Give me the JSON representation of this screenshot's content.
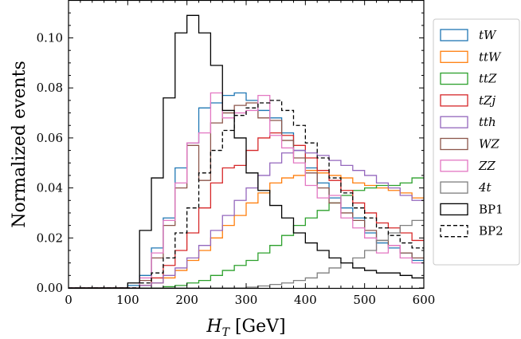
{
  "chart_data": {
    "type": "line",
    "title": "",
    "xlabel": "H_T [GeV]",
    "xlabel_parts": {
      "main": "H",
      "sub": "T",
      "unit": "[GeV]"
    },
    "ylabel": "Normalized events",
    "xlim": [
      0,
      600
    ],
    "ylim": [
      0,
      0.115
    ],
    "x_ticks": [
      "0",
      "100",
      "200",
      "300",
      "400",
      "500",
      "600"
    ],
    "y_ticks": [
      "0.00",
      "0.02",
      "0.04",
      "0.06",
      "0.08",
      "0.10"
    ],
    "grid": false,
    "legend_position": "outside-right",
    "bin_edges": [
      0,
      20,
      40,
      60,
      80,
      100,
      120,
      140,
      160,
      180,
      200,
      220,
      240,
      260,
      280,
      300,
      320,
      340,
      360,
      380,
      400,
      420,
      440,
      460,
      480,
      500,
      520,
      540,
      560,
      580,
      600
    ],
    "series": [
      {
        "name": "tW",
        "italic": true,
        "color": "#1f77b4",
        "dash": false,
        "values": [
          0,
          0,
          0,
          0,
          0,
          0.001,
          0.005,
          0.016,
          0.028,
          0.048,
          0.058,
          0.072,
          0.074,
          0.077,
          0.078,
          0.075,
          0.071,
          0.068,
          0.062,
          0.055,
          0.048,
          0.042,
          0.036,
          0.032,
          0.028,
          0.022,
          0.018,
          0.016,
          0.014,
          0.011
        ]
      },
      {
        "name": "ttW",
        "italic": true,
        "color": "#ff7f0e",
        "dash": false,
        "values": [
          0,
          0,
          0,
          0,
          0,
          0,
          0.001,
          0.002,
          0.004,
          0.007,
          0.011,
          0.015,
          0.02,
          0.025,
          0.029,
          0.034,
          0.038,
          0.042,
          0.044,
          0.045,
          0.047,
          0.046,
          0.045,
          0.044,
          0.042,
          0.041,
          0.04,
          0.039,
          0.038,
          0.036
        ]
      },
      {
        "name": "ttZ",
        "italic": true,
        "color": "#2ca02c",
        "dash": false,
        "values": [
          0,
          0,
          0,
          0,
          0,
          0,
          0,
          0,
          0.0005,
          0.001,
          0.002,
          0.003,
          0.005,
          0.007,
          0.009,
          0.011,
          0.014,
          0.017,
          0.021,
          0.025,
          0.028,
          0.031,
          0.034,
          0.037,
          0.039,
          0.04,
          0.041,
          0.041,
          0.042,
          0.044
        ]
      },
      {
        "name": "tZj",
        "italic": true,
        "color": "#d62728",
        "dash": false,
        "values": [
          0,
          0,
          0,
          0,
          0,
          0,
          0.001,
          0.004,
          0.009,
          0.015,
          0.022,
          0.032,
          0.042,
          0.048,
          0.049,
          0.055,
          0.06,
          0.062,
          0.061,
          0.057,
          0.052,
          0.047,
          0.043,
          0.039,
          0.034,
          0.03,
          0.026,
          0.024,
          0.022,
          0.019
        ]
      },
      {
        "name": "tth",
        "italic": true,
        "color": "#9467bd",
        "dash": false,
        "values": [
          0,
          0,
          0,
          0,
          0,
          0,
          0.001,
          0.002,
          0.005,
          0.008,
          0.012,
          0.017,
          0.023,
          0.029,
          0.035,
          0.04,
          0.045,
          0.05,
          0.054,
          0.055,
          0.054,
          0.053,
          0.051,
          0.049,
          0.047,
          0.045,
          0.042,
          0.04,
          0.037,
          0.035
        ]
      },
      {
        "name": "WZ",
        "italic": true,
        "color": "#8c564b",
        "dash": false,
        "values": [
          0,
          0,
          0,
          0,
          0,
          0,
          0.003,
          0.012,
          0.025,
          0.04,
          0.057,
          0.043,
          0.066,
          0.07,
          0.073,
          0.074,
          0.068,
          0.067,
          0.059,
          0.052,
          0.046,
          0.04,
          0.034,
          0.03,
          0.027,
          0.023,
          0.019,
          0.017,
          0.014,
          0.012
        ]
      },
      {
        "name": "ZZ",
        "italic": true,
        "color": "#e377c2",
        "dash": false,
        "values": [
          0,
          0,
          0,
          0,
          0,
          0,
          0.004,
          0.014,
          0.027,
          0.042,
          0.058,
          0.062,
          0.078,
          0.068,
          0.07,
          0.071,
          0.077,
          0.061,
          0.056,
          0.05,
          0.041,
          0.036,
          0.037,
          0.028,
          0.024,
          0.02,
          0.014,
          0.017,
          0.012,
          0.01
        ]
      },
      {
        "name": "4t",
        "italic": true,
        "color": "#7f7f7f",
        "dash": false,
        "values": [
          0,
          0,
          0,
          0,
          0,
          0,
          0,
          0,
          0,
          0,
          0,
          0,
          0,
          0,
          0,
          0.0003,
          0.0008,
          0.0014,
          0.002,
          0.003,
          0.004,
          0.006,
          0.008,
          0.01,
          0.012,
          0.015,
          0.019,
          0.022,
          0.025,
          0.027
        ]
      },
      {
        "name": "BP1",
        "italic": false,
        "color": "#000000",
        "dash": false,
        "values": [
          0,
          0,
          0,
          0,
          0,
          0.002,
          0.023,
          0.044,
          0.076,
          0.102,
          0.109,
          0.102,
          0.089,
          0.071,
          0.06,
          0.046,
          0.039,
          0.033,
          0.028,
          0.022,
          0.018,
          0.015,
          0.012,
          0.01,
          0.008,
          0.007,
          0.006,
          0.006,
          0.005,
          0.004
        ]
      },
      {
        "name": "BP2",
        "italic": false,
        "color": "#000000",
        "dash": true,
        "values": [
          0,
          0,
          0,
          0,
          0,
          0,
          0.002,
          0.006,
          0.012,
          0.022,
          0.032,
          0.046,
          0.055,
          0.063,
          0.069,
          0.072,
          0.074,
          0.075,
          0.071,
          0.065,
          0.058,
          0.052,
          0.044,
          0.038,
          0.032,
          0.028,
          0.024,
          0.021,
          0.018,
          0.016
        ]
      }
    ]
  }
}
